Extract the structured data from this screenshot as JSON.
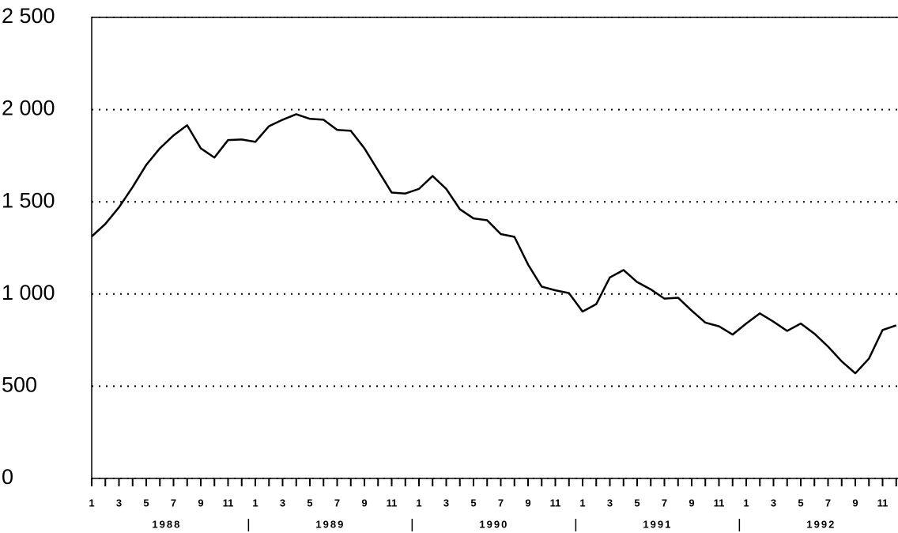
{
  "chart_data": {
    "type": "line",
    "categories": [
      "1",
      null,
      "3",
      null,
      "5",
      null,
      "7",
      null,
      "9",
      null,
      "11",
      null,
      "1",
      null,
      "3",
      null,
      "5",
      null,
      "7",
      null,
      "9",
      null,
      "11",
      null,
      "1",
      null,
      "3",
      null,
      "5",
      null,
      "7",
      null,
      "9",
      null,
      "11",
      null,
      "1",
      null,
      "3",
      null,
      "5",
      null,
      "7",
      null,
      "9",
      null,
      "11",
      null,
      "1",
      null,
      "3",
      null,
      "5",
      null,
      "7",
      null,
      "9",
      null,
      "11",
      null
    ],
    "years": [
      "1988",
      "1989",
      "1990",
      "1991",
      "1992"
    ],
    "series": [
      {
        "color": "#000000",
        "values": [
          1312,
          1380,
          1470,
          1580,
          1700,
          1790,
          1860,
          1915,
          1790,
          1740,
          1835,
          1838,
          1825,
          1910,
          1945,
          1975,
          1950,
          1945,
          1890,
          1885,
          1790,
          1670,
          1550,
          1545,
          1570,
          1640,
          1570,
          1460,
          1410,
          1400,
          1325,
          1310,
          1160,
          1040,
          1020,
          1005,
          905,
          945,
          1090,
          1130,
          1065,
          1025,
          975,
          980,
          910,
          845,
          825,
          780,
          840,
          895,
          850,
          800,
          840,
          785,
          715,
          635,
          570,
          650,
          805,
          830
        ]
      }
    ],
    "ylim": [
      0,
      2500
    ],
    "yticks": [
      0,
      500,
      {
        "value": 1000,
        "label": "1 000"
      },
      {
        "value": 1500,
        "label": "1 500"
      },
      {
        "value": 2000,
        "label": "2 000"
      },
      {
        "value": 2500,
        "label": "2 500"
      }
    ],
    "grid": true
  }
}
